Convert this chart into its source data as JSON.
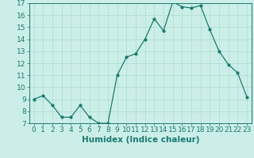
{
  "x": [
    0,
    1,
    2,
    3,
    4,
    5,
    6,
    7,
    8,
    9,
    10,
    11,
    12,
    13,
    14,
    15,
    16,
    17,
    18,
    19,
    20,
    21,
    22,
    23
  ],
  "y": [
    9,
    9.3,
    8.5,
    7.5,
    7.5,
    8.5,
    7.5,
    7.0,
    7.0,
    11.0,
    12.5,
    12.8,
    14.0,
    15.7,
    14.7,
    17.1,
    16.7,
    16.6,
    16.8,
    14.8,
    13.0,
    11.9,
    11.2,
    9.2
  ],
  "xlabel": "Humidex (Indice chaleur)",
  "xlim": [
    -0.5,
    23.5
  ],
  "ylim": [
    7,
    17
  ],
  "yticks": [
    7,
    8,
    9,
    10,
    11,
    12,
    13,
    14,
    15,
    16,
    17
  ],
  "xticks": [
    0,
    1,
    2,
    3,
    4,
    5,
    6,
    7,
    8,
    9,
    10,
    11,
    12,
    13,
    14,
    15,
    16,
    17,
    18,
    19,
    20,
    21,
    22,
    23
  ],
  "line_color": "#1a7a6e",
  "marker_color": "#1a7a6e",
  "bg_color": "#cceee8",
  "grid_color": "#aaddcc",
  "axis_color": "#1a7a6e",
  "xlabel_fontsize": 7.5,
  "tick_fontsize": 6.5
}
